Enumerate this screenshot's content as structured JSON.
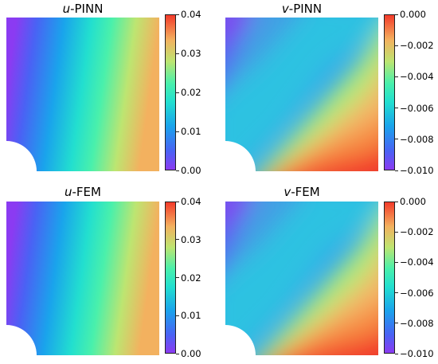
{
  "chart_data": [
    {
      "type": "heatmap",
      "title_var": "u",
      "title_rest": "-PINN",
      "variable": "u",
      "method": "PINN",
      "colormap": "rainbow",
      "colorbar_range": [
        0.0,
        0.04
      ],
      "colorbar_ticks": [
        "0.00",
        "0.01",
        "0.02",
        "0.03",
        "0.04"
      ],
      "field_min": 0.0,
      "field_max": 0.036
    },
    {
      "type": "heatmap",
      "title_var": "v",
      "title_rest": "-PINN",
      "variable": "v",
      "method": "PINN",
      "colormap": "rainbow",
      "colorbar_range": [
        -0.01,
        0.0
      ],
      "colorbar_ticks": [
        "0.000",
        "−0.002",
        "−0.004",
        "−0.006",
        "−0.008",
        "−0.010"
      ],
      "field_min": -0.0095,
      "field_max": 0.0
    },
    {
      "type": "heatmap",
      "title_var": "u",
      "title_rest": "-FEM",
      "variable": "u",
      "method": "FEM",
      "colormap": "rainbow",
      "colorbar_range": [
        0.0,
        0.04
      ],
      "colorbar_ticks": [
        "0.00",
        "0.01",
        "0.02",
        "0.03",
        "0.04"
      ],
      "field_min": 0.0,
      "field_max": 0.036
    },
    {
      "type": "heatmap",
      "title_var": "v",
      "title_rest": "-FEM",
      "variable": "v",
      "method": "FEM",
      "colormap": "rainbow",
      "colorbar_range": [
        -0.01,
        0.0
      ],
      "colorbar_ticks": [
        "0.000",
        "−0.002",
        "−0.004",
        "−0.006",
        "−0.008",
        "−0.010"
      ],
      "field_min": -0.0095,
      "field_max": 0.0
    }
  ]
}
